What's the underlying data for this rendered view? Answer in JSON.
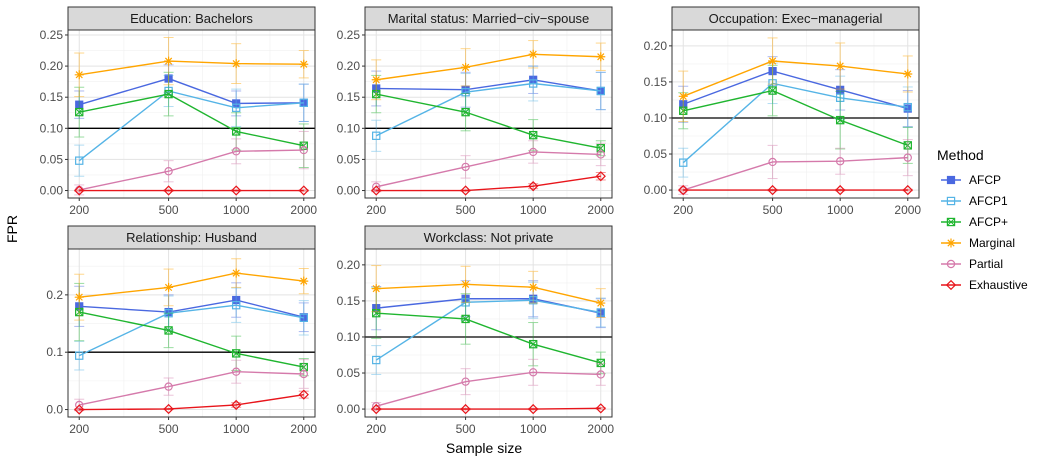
{
  "figure": {
    "ylabel": "FPR",
    "xlabel": "Sample size",
    "legend_title": "Method",
    "legend_position": "right"
  },
  "method_styles": {
    "AFCP": {
      "color": "#4a68e0",
      "marker": "square-filled"
    },
    "AFCP1": {
      "color": "#55b4e6",
      "marker": "square-open"
    },
    "AFCP+": {
      "color": "#1fb52f",
      "marker": "square-cross"
    },
    "Marginal": {
      "color": "#ffa500",
      "marker": "asterisk"
    },
    "Partial": {
      "color": "#d57aab",
      "marker": "circle-open"
    },
    "Exhaustive": {
      "color": "#e8151b",
      "marker": "diamond-open"
    }
  },
  "chart_data": [
    {
      "type": "line",
      "title": "Education: Bachelors",
      "x": [
        200,
        500,
        1000,
        2000
      ],
      "x_scale": "log",
      "yticks": [
        0.0,
        0.05,
        0.1,
        0.15,
        0.2,
        0.25
      ],
      "ytick_labels": [
        "0.00",
        "0.05",
        "0.10",
        "0.15",
        "0.20",
        "0.25"
      ],
      "ylim": [
        -0.012,
        0.258
      ],
      "hline": 0.1,
      "grid": true,
      "series": [
        {
          "name": "AFCP",
          "values": [
            0.138,
            0.18,
            0.14,
            0.141
          ],
          "err": [
            0.022,
            0.022,
            0.02,
            0.03
          ]
        },
        {
          "name": "AFCP1",
          "values": [
            0.048,
            0.16,
            0.133,
            0.141
          ],
          "err": [
            0.025,
            0.025,
            0.03,
            0.03
          ]
        },
        {
          "name": "AFCP+",
          "values": [
            0.126,
            0.155,
            0.095,
            0.072
          ],
          "err": [
            0.04,
            0.035,
            0.03,
            0.035
          ]
        },
        {
          "name": "Marginal",
          "values": [
            0.186,
            0.208,
            0.204,
            0.203
          ],
          "err": [
            0.035,
            0.038,
            0.032,
            0.022
          ]
        },
        {
          "name": "Partial",
          "values": [
            0.001,
            0.031,
            0.063,
            0.065
          ],
          "err": [
            0.008,
            0.017,
            0.02,
            0.03
          ]
        },
        {
          "name": "Exhaustive",
          "values": [
            0.0,
            0.0,
            0.0,
            0.0
          ],
          "err": [
            0.001,
            0.001,
            0.001,
            0.001
          ]
        }
      ]
    },
    {
      "type": "line",
      "title": "Marital status: Married−civ−spouse",
      "x": [
        200,
        500,
        1000,
        2000
      ],
      "x_scale": "log",
      "yticks": [
        0.0,
        0.05,
        0.1,
        0.15,
        0.2,
        0.25
      ],
      "ytick_labels": [
        "0.00",
        "0.05",
        "0.10",
        "0.15",
        "0.20",
        "0.25"
      ],
      "ylim": [
        -0.012,
        0.258
      ],
      "hline": 0.1,
      "grid": true,
      "series": [
        {
          "name": "AFCP",
          "values": [
            0.164,
            0.162,
            0.178,
            0.16
          ],
          "err": [
            0.028,
            0.028,
            0.022,
            0.03
          ]
        },
        {
          "name": "AFCP1",
          "values": [
            0.088,
            0.158,
            0.172,
            0.16
          ],
          "err": [
            0.025,
            0.03,
            0.028,
            0.03
          ]
        },
        {
          "name": "AFCP+",
          "values": [
            0.155,
            0.126,
            0.089,
            0.068
          ],
          "err": [
            0.03,
            0.03,
            0.025,
            0.012
          ]
        },
        {
          "name": "Marginal",
          "values": [
            0.178,
            0.198,
            0.219,
            0.215
          ],
          "err": [
            0.032,
            0.03,
            0.022,
            0.022
          ]
        },
        {
          "name": "Partial",
          "values": [
            0.006,
            0.038,
            0.062,
            0.058
          ],
          "err": [
            0.008,
            0.018,
            0.018,
            0.018
          ]
        },
        {
          "name": "Exhaustive",
          "values": [
            0.0,
            0.0,
            0.007,
            0.023
          ],
          "err": [
            0.001,
            0.001,
            0.004,
            0.006
          ]
        }
      ]
    },
    {
      "type": "line",
      "title": "Occupation: Exec−managerial",
      "x": [
        200,
        500,
        1000,
        2000
      ],
      "x_scale": "log",
      "yticks": [
        0.0,
        0.05,
        0.1,
        0.15,
        0.2
      ],
      "ytick_labels": [
        "0.00",
        "0.05",
        "0.10",
        "0.15",
        "0.20"
      ],
      "ylim": [
        -0.011,
        0.222
      ],
      "hline": 0.1,
      "grid": true,
      "series": [
        {
          "name": "AFCP",
          "values": [
            0.119,
            0.165,
            0.139,
            0.113
          ],
          "err": [
            0.025,
            0.02,
            0.028,
            0.025
          ]
        },
        {
          "name": "AFCP1",
          "values": [
            0.038,
            0.148,
            0.128,
            0.115
          ],
          "err": [
            0.02,
            0.028,
            0.03,
            0.028
          ]
        },
        {
          "name": "AFCP+",
          "values": [
            0.11,
            0.138,
            0.097,
            0.062
          ],
          "err": [
            0.025,
            0.035,
            0.04,
            0.025
          ]
        },
        {
          "name": "Marginal",
          "values": [
            0.13,
            0.179,
            0.172,
            0.161
          ],
          "err": [
            0.035,
            0.032,
            0.032,
            0.025
          ]
        },
        {
          "name": "Partial",
          "values": [
            0.0,
            0.039,
            0.04,
            0.045
          ],
          "err": [
            0.006,
            0.023,
            0.018,
            0.025
          ]
        },
        {
          "name": "Exhaustive",
          "values": [
            0.0,
            0.0,
            0.0,
            0.0
          ],
          "err": [
            0.001,
            0.001,
            0.001,
            0.001
          ]
        }
      ]
    },
    {
      "type": "line",
      "title": "Relationship: Husband",
      "x": [
        200,
        500,
        1000,
        2000
      ],
      "x_scale": "log",
      "yticks": [
        0.0,
        0.1,
        0.2
      ],
      "ytick_labels": [
        "0.0",
        "0.1",
        "0.2"
      ],
      "ylim": [
        -0.013,
        0.28
      ],
      "hline": 0.1,
      "grid": true,
      "series": [
        {
          "name": "AFCP",
          "values": [
            0.18,
            0.17,
            0.191,
            0.161
          ],
          "err": [
            0.035,
            0.03,
            0.03,
            0.025
          ]
        },
        {
          "name": "AFCP1",
          "values": [
            0.094,
            0.168,
            0.182,
            0.16
          ],
          "err": [
            0.025,
            0.03,
            0.03,
            0.03
          ]
        },
        {
          "name": "AFCP+",
          "values": [
            0.17,
            0.138,
            0.098,
            0.074
          ],
          "err": [
            0.05,
            0.03,
            0.03,
            0.015
          ]
        },
        {
          "name": "Marginal",
          "values": [
            0.196,
            0.213,
            0.238,
            0.224
          ],
          "err": [
            0.04,
            0.032,
            0.025,
            0.022
          ]
        },
        {
          "name": "Partial",
          "values": [
            0.008,
            0.04,
            0.066,
            0.062
          ],
          "err": [
            0.01,
            0.015,
            0.02,
            0.025
          ]
        },
        {
          "name": "Exhaustive",
          "values": [
            0.0,
            0.001,
            0.008,
            0.026
          ],
          "err": [
            0.001,
            0.001,
            0.004,
            0.006
          ]
        }
      ]
    },
    {
      "type": "line",
      "title": "Workclass: Not private",
      "x": [
        200,
        500,
        1000,
        2000
      ],
      "x_scale": "log",
      "yticks": [
        0.0,
        0.05,
        0.1,
        0.15,
        0.2
      ],
      "ytick_labels": [
        "0.00",
        "0.05",
        "0.10",
        "0.15",
        "0.20"
      ],
      "ylim": [
        -0.011,
        0.222
      ],
      "hline": 0.1,
      "grid": true,
      "series": [
        {
          "name": "AFCP",
          "values": [
            0.14,
            0.153,
            0.153,
            0.133
          ],
          "err": [
            0.03,
            0.025,
            0.025,
            0.02
          ]
        },
        {
          "name": "AFCP1",
          "values": [
            0.068,
            0.148,
            0.151,
            0.134
          ],
          "err": [
            0.02,
            0.025,
            0.025,
            0.02
          ]
        },
        {
          "name": "AFCP+",
          "values": [
            0.133,
            0.125,
            0.09,
            0.064
          ],
          "err": [
            0.035,
            0.035,
            0.03,
            0.015
          ]
        },
        {
          "name": "Marginal",
          "values": [
            0.167,
            0.173,
            0.169,
            0.147
          ],
          "err": [
            0.032,
            0.025,
            0.022,
            0.02
          ]
        },
        {
          "name": "Partial",
          "values": [
            0.004,
            0.038,
            0.051,
            0.048
          ],
          "err": [
            0.005,
            0.018,
            0.018,
            0.015
          ]
        },
        {
          "name": "Exhaustive",
          "values": [
            0.0,
            0.0,
            0.0,
            0.001
          ],
          "err": [
            0.001,
            0.001,
            0.001,
            0.001
          ]
        }
      ]
    }
  ]
}
